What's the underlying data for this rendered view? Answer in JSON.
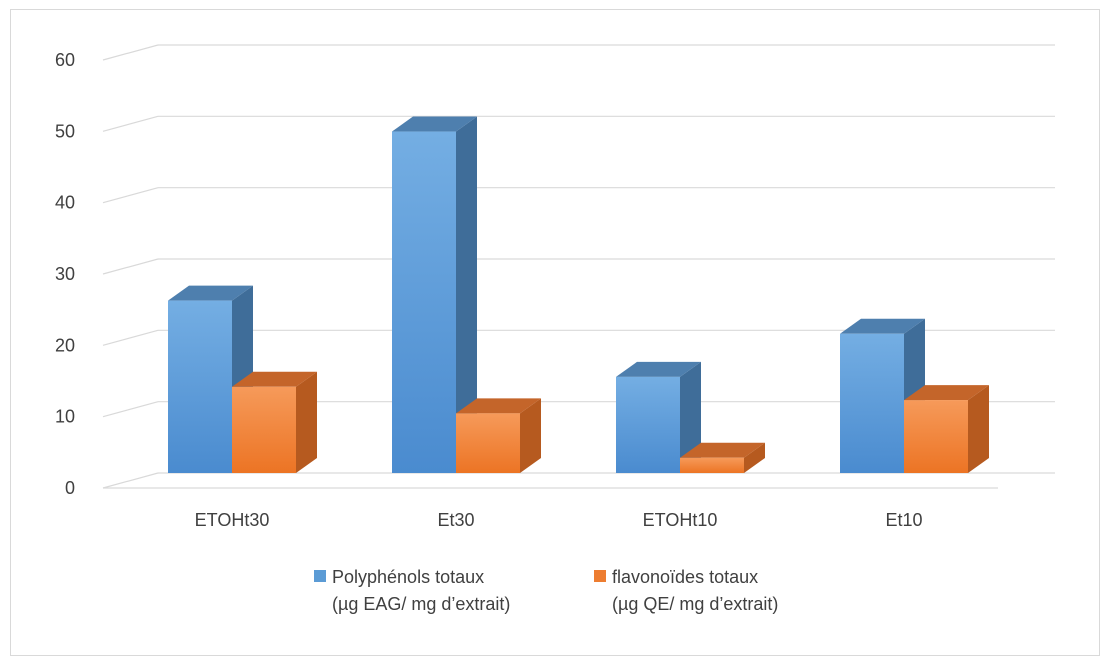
{
  "chart_data": {
    "type": "bar",
    "categories": [
      "ETOHt30",
      "Et30",
      "ETOHt10",
      "Et10"
    ],
    "series": [
      {
        "name": "Polyphénols totaux (µg EAG/ mg d’extrait)",
        "legend_lines": [
          "Polyphénols totaux",
          "(µg EAG/ mg d’extrait)"
        ],
        "values": [
          26,
          51.5,
          14.5,
          21
        ],
        "color": "#5b9bd5"
      },
      {
        "name": "flavonoïdes totaux (µg QE/ mg d’extrait)",
        "legend_lines": [
          "flavonoïdes totaux",
          "(µg QE/ mg d’extrait)"
        ],
        "values": [
          13,
          9,
          2.3,
          11
        ],
        "color": "#ed7d31"
      }
    ],
    "ylim": [
      0,
      60
    ],
    "yticks": [
      "0",
      "10",
      "20",
      "30",
      "40",
      "50",
      "60"
    ],
    "title": "",
    "xlabel": "",
    "ylabel": "",
    "grid": true,
    "legend_position": "bottom",
    "style": "3d-column"
  }
}
